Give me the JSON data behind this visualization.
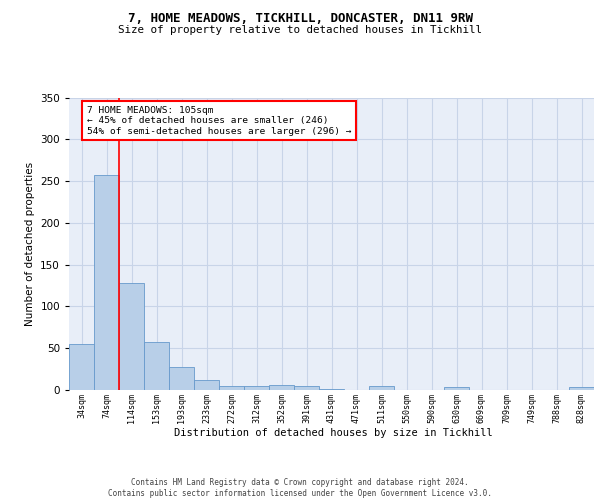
{
  "title_line1": "7, HOME MEADOWS, TICKHILL, DONCASTER, DN11 9RW",
  "title_line2": "Size of property relative to detached houses in Tickhill",
  "xlabel": "Distribution of detached houses by size in Tickhill",
  "ylabel": "Number of detached properties",
  "bar_labels": [
    "34sqm",
    "74sqm",
    "114sqm",
    "153sqm",
    "193sqm",
    "233sqm",
    "272sqm",
    "312sqm",
    "352sqm",
    "391sqm",
    "431sqm",
    "471sqm",
    "511sqm",
    "550sqm",
    "590sqm",
    "630sqm",
    "669sqm",
    "709sqm",
    "749sqm",
    "788sqm",
    "828sqm"
  ],
  "bar_values": [
    55,
    257,
    128,
    57,
    28,
    12,
    5,
    5,
    6,
    5,
    1,
    0,
    5,
    0,
    0,
    3,
    0,
    0,
    0,
    0,
    3
  ],
  "bar_color": "#b8cfe8",
  "bar_edge_color": "#6699cc",
  "grid_color": "#c8d4e8",
  "background_color": "#e8eef8",
  "vline_color": "red",
  "vline_x_index": 1.5,
  "annotation_text": "7 HOME MEADOWS: 105sqm\n← 45% of detached houses are smaller (246)\n54% of semi-detached houses are larger (296) →",
  "annotation_box_color": "white",
  "annotation_box_edge": "red",
  "footer_text": "Contains HM Land Registry data © Crown copyright and database right 2024.\nContains public sector information licensed under the Open Government Licence v3.0.",
  "ylim": [
    0,
    350
  ],
  "yticks": [
    0,
    50,
    100,
    150,
    200,
    250,
    300,
    350
  ]
}
